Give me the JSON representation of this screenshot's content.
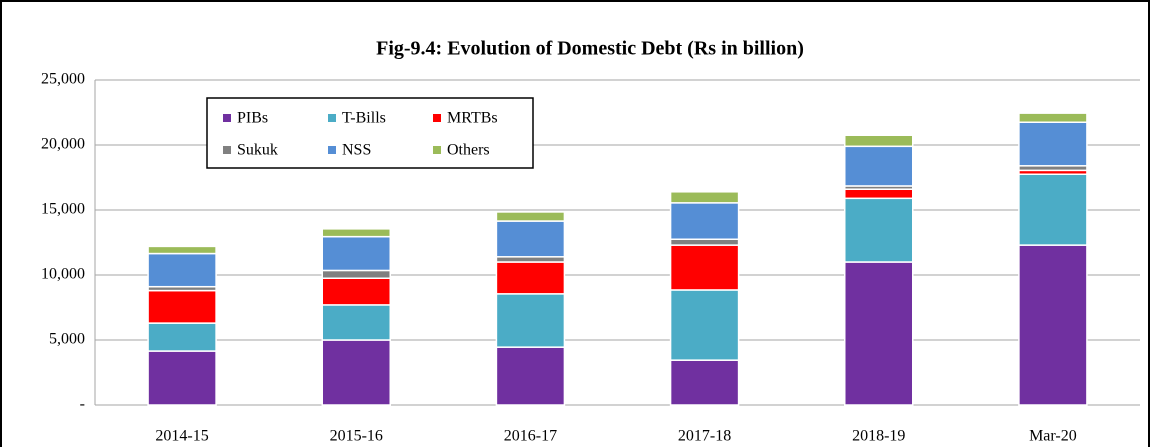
{
  "chart_data": {
    "type": "bar",
    "stacked": true,
    "title": "Fig-9.4: Evolution of Domestic Debt  (Rs in billion)",
    "categories": [
      "2014-15",
      "2015-16",
      "2016-17",
      "2017-18",
      "2018-19",
      "Mar-20"
    ],
    "series": [
      {
        "name": "PIBs",
        "color": "#7030a0",
        "values": [
          4150,
          5000,
          4450,
          3450,
          11000,
          12300
        ]
      },
      {
        "name": "T-Bills",
        "color": "#4bacc6",
        "values": [
          2150,
          2700,
          4100,
          5400,
          4900,
          5450
        ]
      },
      {
        "name": "MRTBs",
        "color": "#ff0000",
        "values": [
          2500,
          2050,
          2450,
          3450,
          700,
          300
        ]
      },
      {
        "name": "Sukuk",
        "color": "#808080",
        "values": [
          300,
          600,
          400,
          450,
          250,
          350
        ]
      },
      {
        "name": "NSS",
        "color": "#558ed5",
        "values": [
          2550,
          2600,
          2750,
          2800,
          3050,
          3350
        ]
      },
      {
        "name": "Others",
        "color": "#9bbb59",
        "values": [
          550,
          600,
          700,
          850,
          850,
          700
        ]
      }
    ],
    "ylim": [
      0,
      25000
    ],
    "yticks": [
      {
        "value": 0,
        "label": "-"
      },
      {
        "value": 5000,
        "label": "5,000"
      },
      {
        "value": 10000,
        "label": "10,000"
      },
      {
        "value": 15000,
        "label": "15,000"
      },
      {
        "value": 20000,
        "label": "20,000"
      },
      {
        "value": 25000,
        "label": "25,000"
      }
    ],
    "grid": true,
    "legend": "upper left"
  }
}
